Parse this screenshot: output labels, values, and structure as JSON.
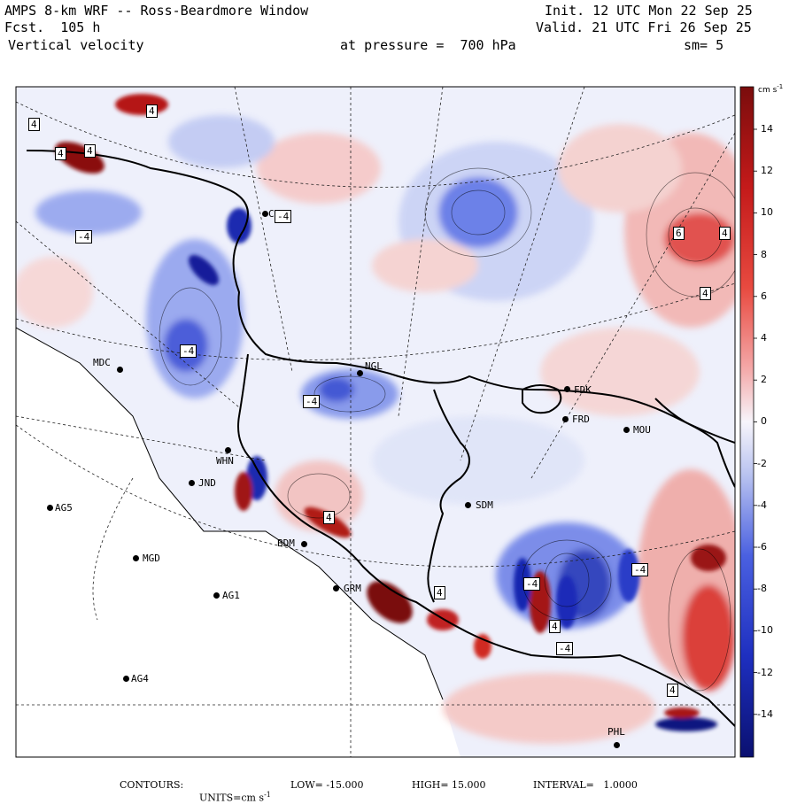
{
  "header": {
    "model": "AMPS 8-km WRF -- Ross-Beardmore Window",
    "init": "Init. 12 UTC Mon 22 Sep 25",
    "fcst": "Fcst.  105 h",
    "valid": "Valid. 21 UTC Fri 26 Sep 25",
    "field": "Vertical velocity",
    "pressure": "at pressure =  700 hPa",
    "smooth": "sm= 5"
  },
  "colorbar": {
    "units": "cm s",
    "units_exp": "-1",
    "ticks": [
      "14",
      "12",
      "10",
      "8",
      "6",
      "4",
      "2",
      "0",
      "-2",
      "-4",
      "-6",
      "-8",
      "-10",
      "-12",
      "-14"
    ]
  },
  "footer": {
    "contours": "CONTOURS:",
    "units": "UNITS=cm s",
    "units_exp": "-1",
    "low": "LOW= -15.000",
    "high": "HIGH= 15.000",
    "interval": "INTERVAL=   1.0000"
  },
  "stations": [
    {
      "id": "cph",
      "name": "CPH"
    },
    {
      "id": "mdc",
      "name": "MDC"
    },
    {
      "id": "ngl",
      "name": "NGL"
    },
    {
      "id": "fdk",
      "name": "FDK"
    },
    {
      "id": "frd",
      "name": "FRD"
    },
    {
      "id": "mou",
      "name": "MOU"
    },
    {
      "id": "whn",
      "name": "WHN"
    },
    {
      "id": "jnd",
      "name": "JND"
    },
    {
      "id": "ag5",
      "name": "AG5"
    },
    {
      "id": "sdm",
      "name": "SDM"
    },
    {
      "id": "bdm",
      "name": "BDM"
    },
    {
      "id": "mgd",
      "name": "MGD"
    },
    {
      "id": "grm",
      "name": "GRM"
    },
    {
      "id": "ag1",
      "name": "AG1"
    },
    {
      "id": "ag4",
      "name": "AG4"
    },
    {
      "id": "phl",
      "name": "PHL"
    }
  ],
  "contour_boxes": [
    "4",
    "4",
    "4",
    "4",
    "-4",
    "-4",
    "-4",
    "-4",
    "6",
    "4",
    "4",
    "4",
    "-4",
    "-4",
    "-4",
    "4",
    "4",
    "4"
  ],
  "colors": {
    "neg_max": "#1a1a9a",
    "neg_mid": "#4a5ee0",
    "neg_light": "#c8d0f5",
    "zero": "#f4f4fb",
    "pos_light": "#f7cfcf",
    "pos_mid": "#e8504a",
    "pos_max": "#8a1010"
  }
}
